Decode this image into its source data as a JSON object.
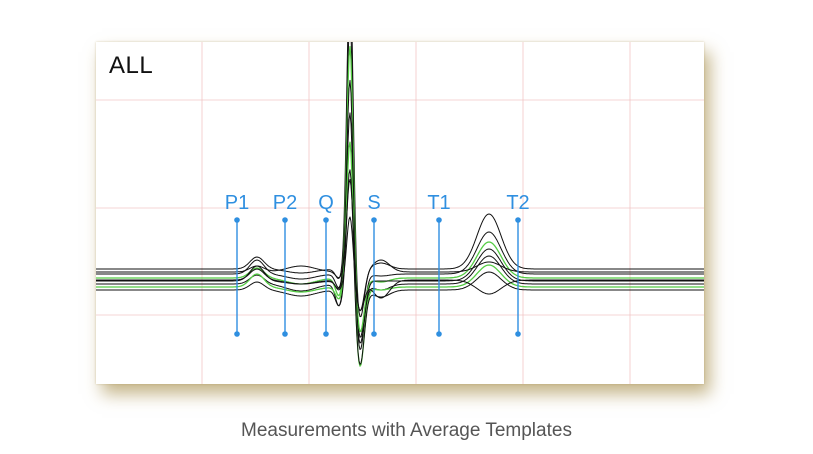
{
  "lead_label": "ALL",
  "caption": "Measurements with Average Templates",
  "colors": {
    "marker": "#2f8fe0",
    "trace": "#111111",
    "average_trace": "#55cc44",
    "grid": "#f2c6c6"
  },
  "markers": [
    {
      "label": "P1"
    },
    {
      "label": "P2"
    },
    {
      "label": "Q"
    },
    {
      "label": "S"
    },
    {
      "label": "T1"
    },
    {
      "label": "T2"
    }
  ]
}
